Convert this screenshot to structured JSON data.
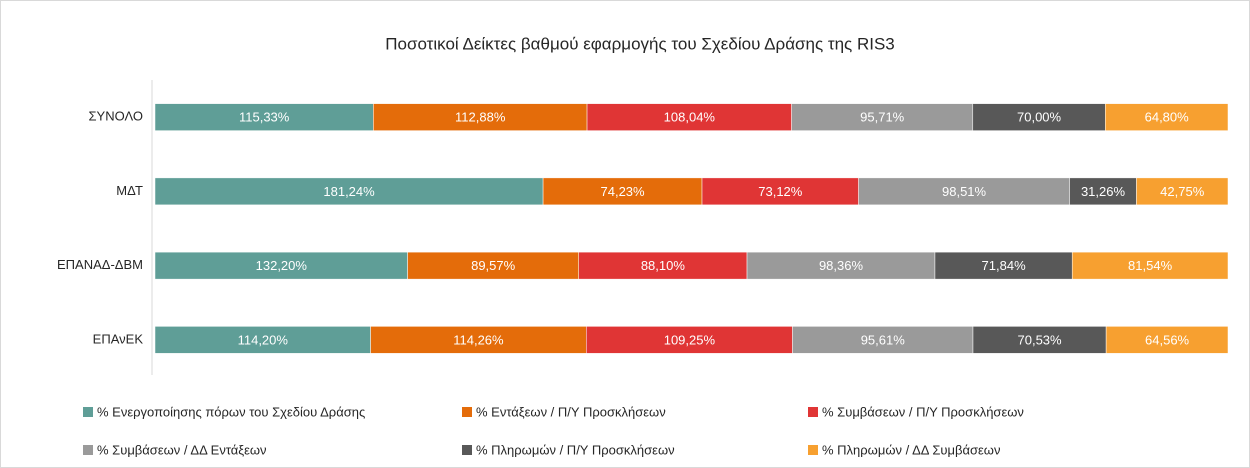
{
  "chart_data": {
    "type": "bar",
    "orientation": "horizontal",
    "stacking": "percent",
    "title": "Ποσοτικοί Δείκτες βαθμού εφαρμογής του Σχεδίου Δράσης της RIS3",
    "categories": [
      "ΣΥΝΟΛΟ",
      "ΜΔΤ",
      "ΕΠΑΝΑΔ-ΔΒΜ",
      "ΕΠΑνΕΚ"
    ],
    "series": [
      {
        "name": "% Ενεργοποίησης πόρων του Σχεδίου Δράσης",
        "color": "#5f9e97",
        "values": [
          115.33,
          181.24,
          132.2,
          114.2
        ],
        "value_labels": [
          "115,33%",
          "181,24%",
          "132,20%",
          "114,20%"
        ]
      },
      {
        "name": "% Εντάξεων / Π/Υ Προσκλήσεων",
        "color": "#e46c0a",
        "values": [
          112.88,
          74.23,
          89.57,
          114.26
        ],
        "value_labels": [
          "112,88%",
          "74,23%",
          "89,57%",
          "114,26%"
        ]
      },
      {
        "name": "% Συμβάσεων / Π/Υ Προσκλήσεων",
        "color": "#e03535",
        "values": [
          108.04,
          73.12,
          88.1,
          109.25
        ],
        "value_labels": [
          "108,04%",
          "73,12%",
          "88,10%",
          "109,25%"
        ]
      },
      {
        "name": "% Συμβάσεων / ΔΔ Εντάξεων",
        "color": "#9a9a9a",
        "values": [
          95.71,
          98.51,
          98.36,
          95.61
        ],
        "value_labels": [
          "95,71%",
          "98,51%",
          "98,36%",
          "95,61%"
        ]
      },
      {
        "name": "% Πληρωμών / Π/Υ Προσκλήσεων",
        "color": "#585858",
        "values": [
          70.0,
          31.26,
          71.84,
          70.53
        ],
        "value_labels": [
          "70,00%",
          "31,26%",
          "71,84%",
          "70,53%"
        ]
      },
      {
        "name": "% Πληρωμών / ΔΔ Συμβάσεων",
        "color": "#f7a030",
        "values": [
          64.8,
          42.75,
          81.54,
          64.56
        ],
        "value_labels": [
          "64,80%",
          "42,75%",
          "81,54%",
          "64,56%"
        ]
      }
    ],
    "legend": "bottom"
  }
}
